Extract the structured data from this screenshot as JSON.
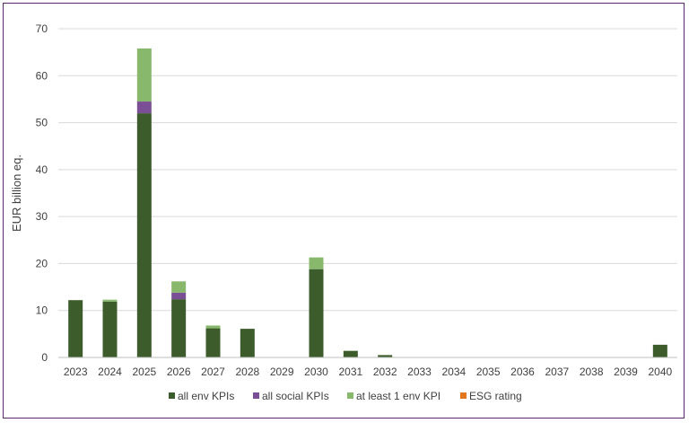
{
  "chart_data": {
    "type": "bar",
    "stacked": true,
    "title": "",
    "xlabel": "",
    "ylabel": "EUR billion eq.",
    "ylim": [
      0,
      70
    ],
    "yticks": [
      0,
      10,
      20,
      30,
      40,
      50,
      60,
      70
    ],
    "grid": true,
    "legend_position": "bottom",
    "categories": [
      "2023",
      "2024",
      "2025",
      "2026",
      "2027",
      "2028",
      "2029",
      "2030",
      "2031",
      "2032",
      "2033",
      "2034",
      "2035",
      "2036",
      "2037",
      "2038",
      "2039",
      "2040"
    ],
    "series": [
      {
        "name": "all env KPIs",
        "color": "#3d5c2c",
        "values": [
          12.2,
          11.9,
          52.0,
          12.4,
          6.2,
          6.1,
          0,
          18.8,
          1.4,
          0.5,
          0,
          0,
          0,
          0,
          0,
          0,
          0,
          2.7
        ]
      },
      {
        "name": "all social KPIs",
        "color": "#7b4f96",
        "values": [
          0,
          0,
          2.5,
          1.4,
          0,
          0,
          0,
          0,
          0,
          0,
          0,
          0,
          0,
          0,
          0,
          0,
          0,
          0
        ]
      },
      {
        "name": "at least 1 env KPI",
        "color": "#88b86c",
        "values": [
          0,
          0.4,
          11.3,
          2.4,
          0.6,
          0,
          0,
          2.5,
          0,
          0,
          0,
          0,
          0,
          0,
          0,
          0,
          0,
          0
        ]
      },
      {
        "name": "ESG rating",
        "color": "#e2761f",
        "values": [
          0,
          0,
          0,
          0,
          0,
          0,
          0,
          0,
          0,
          0,
          0,
          0,
          0,
          0,
          0,
          0,
          0,
          0
        ]
      }
    ]
  }
}
